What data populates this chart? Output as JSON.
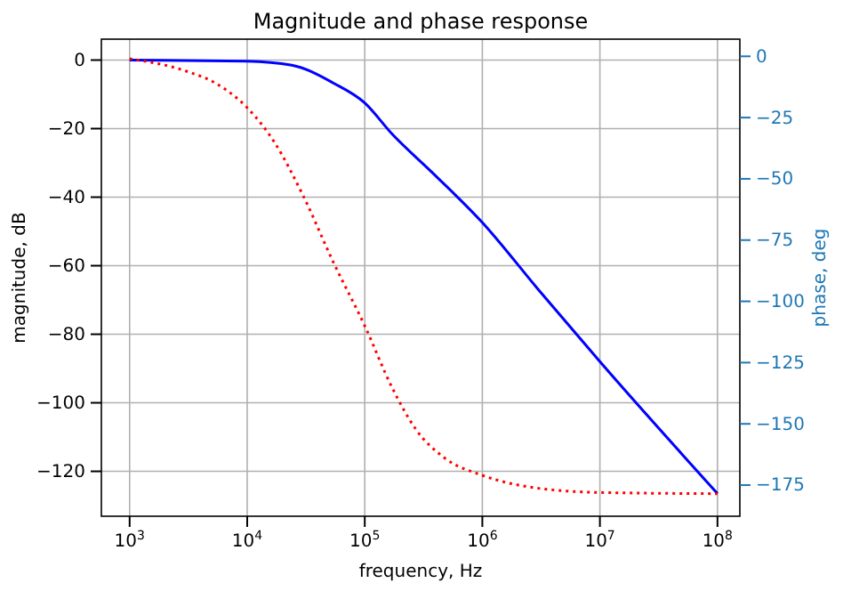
{
  "chart_data": {
    "type": "line",
    "title": "Magnitude and phase response",
    "xlabel": "frequency, Hz",
    "ylabel": "magnitude, dB",
    "y2label": "phase, deg",
    "log": "x",
    "grid": true,
    "xlim": [
      575,
      155000000
    ],
    "xticks": [
      {
        "value": 1000,
        "label": "10$^{3}$"
      },
      {
        "value": 10000,
        "label": "10$^{4}$"
      },
      {
        "value": 100000,
        "label": "10$^{5}$"
      },
      {
        "value": 1000000,
        "label": "10$^{6}$"
      },
      {
        "value": 10000000,
        "label": "10$^{7}$"
      },
      {
        "value": 100000000,
        "label": "10$^{8}$"
      }
    ],
    "ylim": [
      -133.1,
      6.1
    ],
    "yticks": [
      -120,
      -100,
      -80,
      -60,
      -40,
      -20,
      0
    ],
    "y2lim": [
      -187.7,
      7.0
    ],
    "y2ticks": [
      -175,
      -150,
      -125,
      -100,
      -75,
      -50,
      -25,
      0
    ],
    "series": [
      {
        "color": "#0000ff",
        "line_style": "solid",
        "x": [
          1000,
          10000,
          24000,
          54000,
          100000,
          170000,
          380000,
          1000000,
          3000000,
          10000000,
          100000000
        ],
        "values": [
          0,
          -0.3,
          -1.5,
          -6.7,
          -12.5,
          -21.5,
          -33,
          -47.4,
          -67,
          -88,
          -126.5
        ]
      },
      {
        "color": "#ff0000",
        "line_style": "dotted",
        "axis": "y2",
        "x": [
          1000,
          3000,
          5400,
          10000,
          17000,
          30000,
          54000,
          100000,
          170000,
          270000,
          480000,
          1000000,
          2700000,
          10000000,
          100000000
        ],
        "values": [
          -1,
          -6,
          -11,
          -21,
          -35,
          -57,
          -84,
          -110,
          -135,
          -152,
          -164,
          -171,
          -176,
          -178,
          -178.5
        ]
      }
    ]
  }
}
